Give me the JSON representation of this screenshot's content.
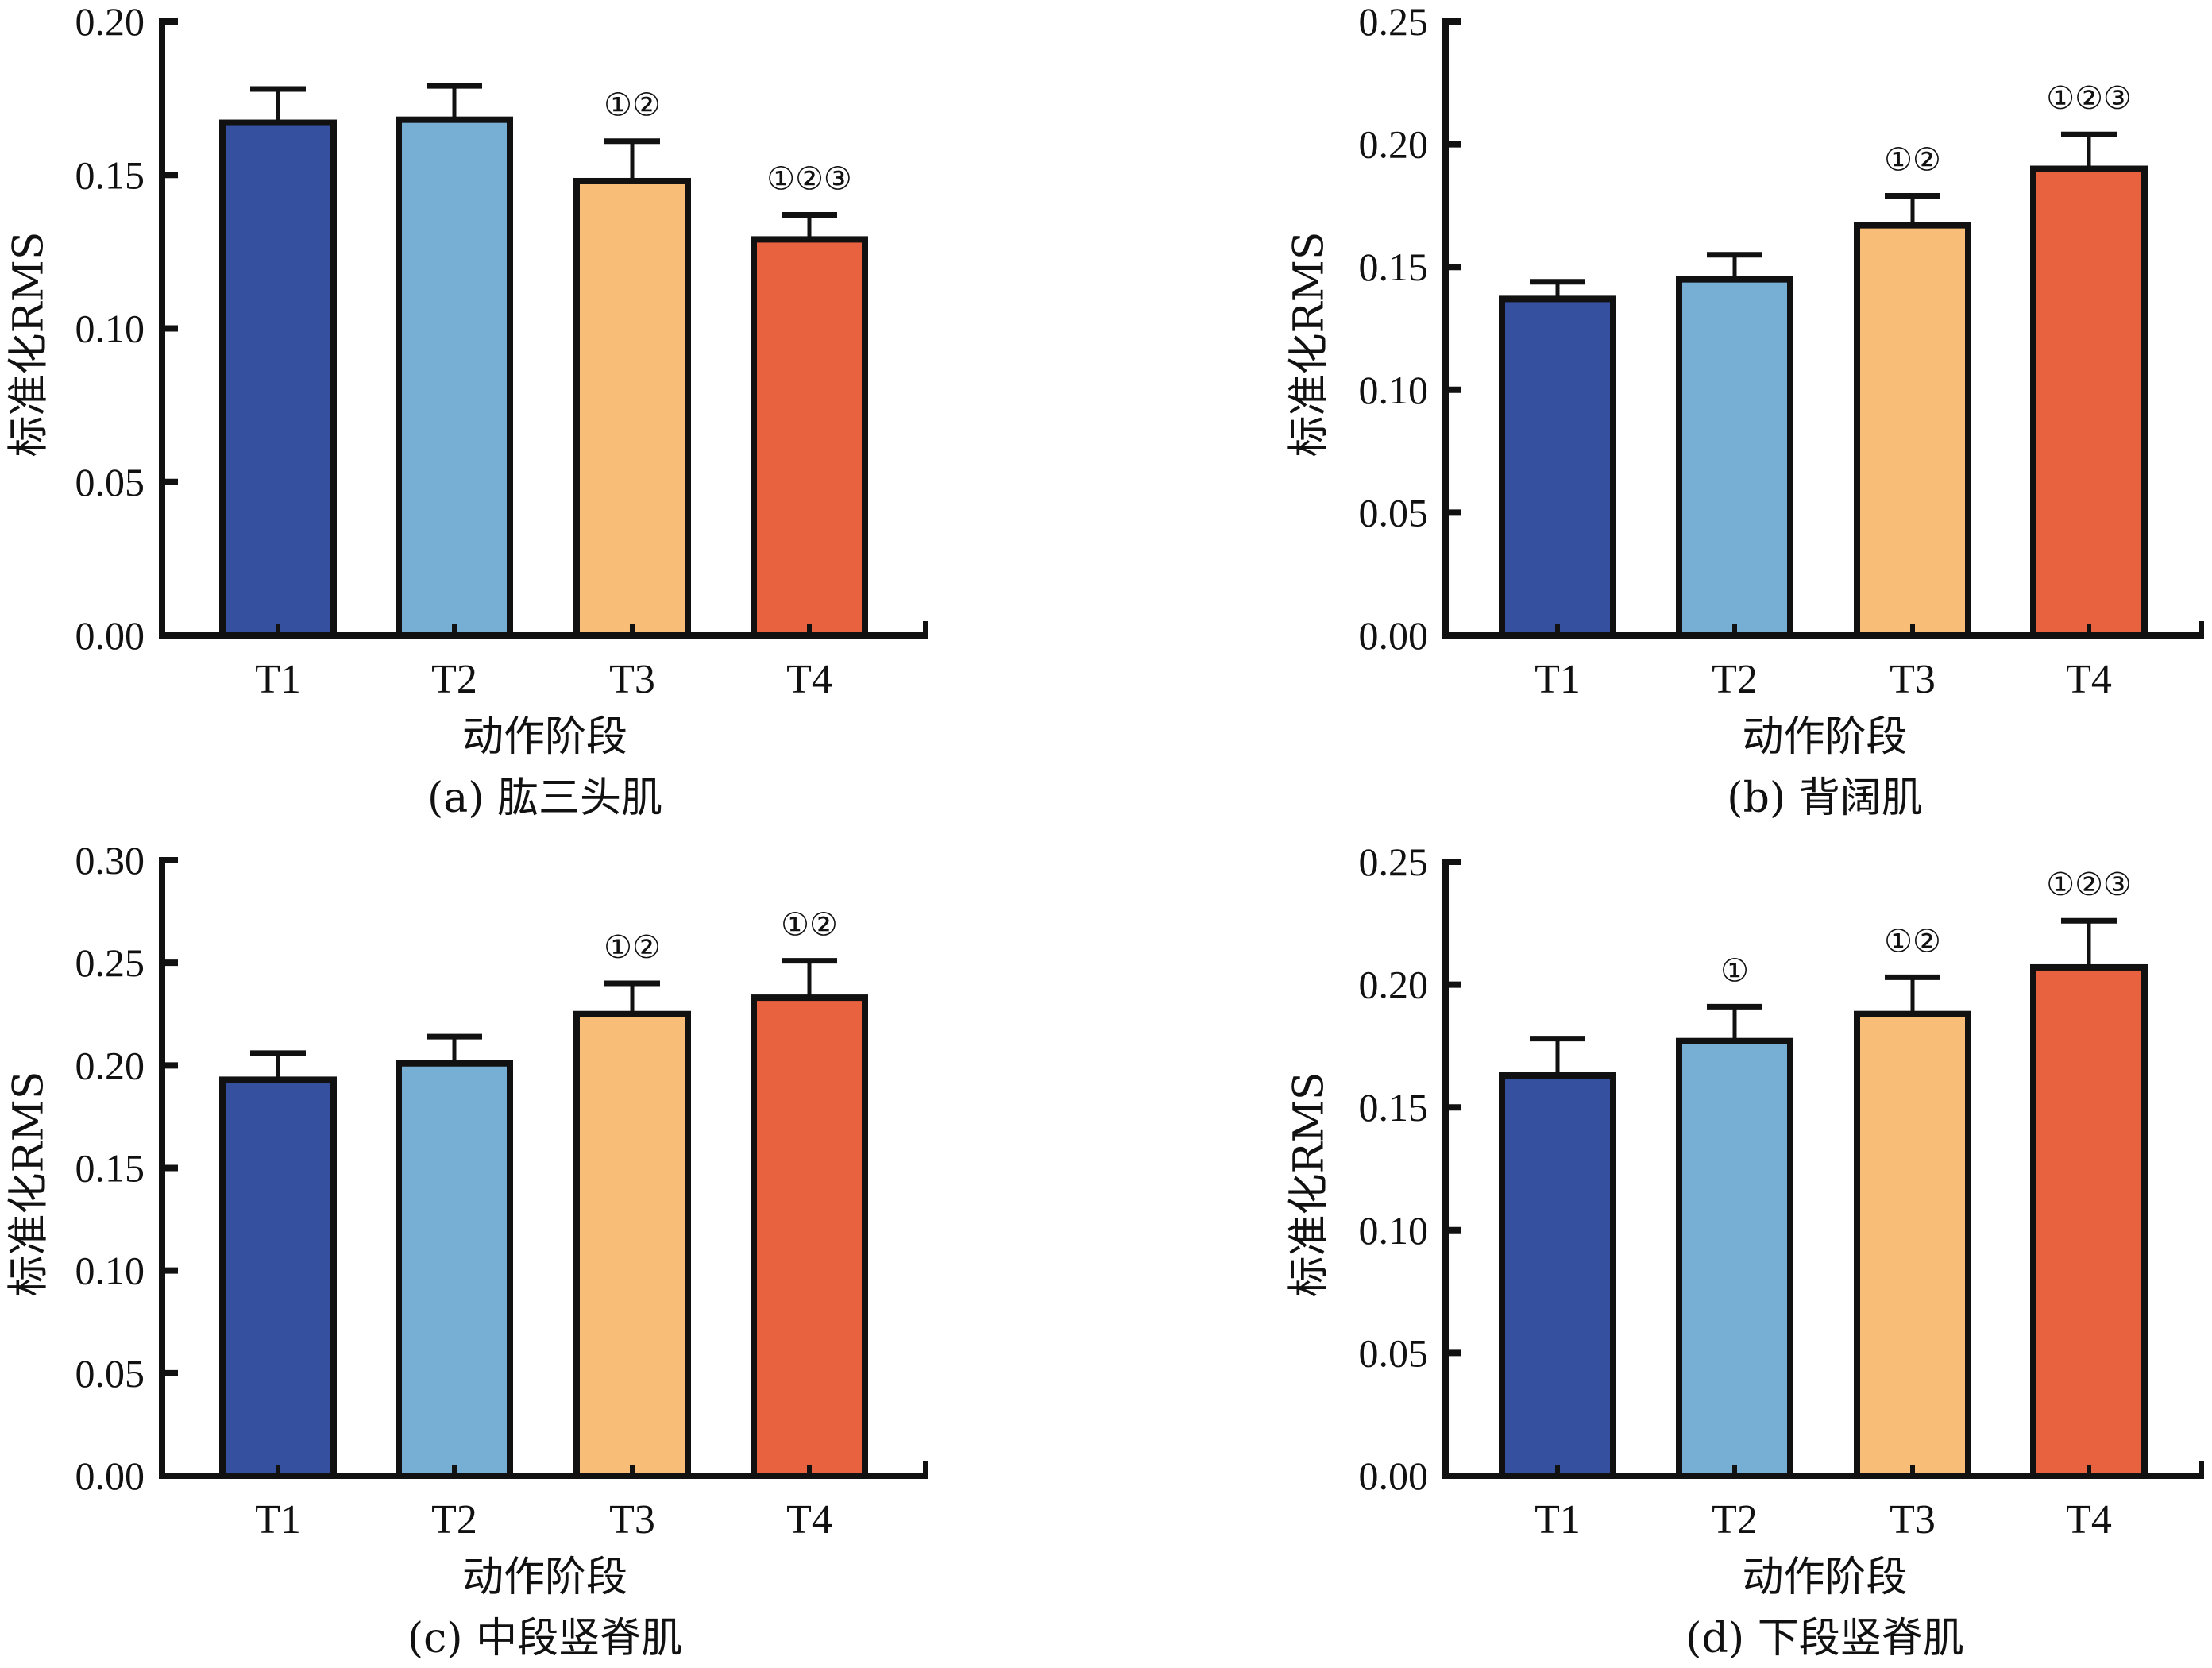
{
  "chart_data": [
    {
      "type": "bar",
      "panel": "a",
      "title": "(a) 肱三头肌",
      "xlabel": "动作阶段",
      "ylabel": "标准化RMS",
      "categories": [
        "T1",
        "T2",
        "T3",
        "T4"
      ],
      "values": [
        0.167,
        0.168,
        0.148,
        0.129
      ],
      "error_upper": [
        0.178,
        0.179,
        0.161,
        0.137
      ],
      "annotations": [
        "",
        "",
        "①②",
        "①②③"
      ],
      "ylim": [
        0,
        0.2
      ],
      "yticks": [
        "0.00",
        "0.05",
        "0.10",
        "0.15",
        "0.20"
      ],
      "ytick_values": [
        0,
        0.05,
        0.1,
        0.15,
        0.2
      ],
      "grid": false
    },
    {
      "type": "bar",
      "panel": "b",
      "title": "(b) 背阔肌",
      "xlabel": "动作阶段",
      "ylabel": "标准化RMS",
      "categories": [
        "T1",
        "T2",
        "T3",
        "T4"
      ],
      "values": [
        0.137,
        0.145,
        0.167,
        0.19
      ],
      "error_upper": [
        0.144,
        0.155,
        0.179,
        0.204
      ],
      "annotations": [
        "",
        "",
        "①②",
        "①②③"
      ],
      "ylim": [
        0,
        0.25
      ],
      "yticks": [
        "0.00",
        "0.05",
        "0.10",
        "0.15",
        "0.20",
        "0.25"
      ],
      "ytick_values": [
        0,
        0.05,
        0.1,
        0.15,
        0.2,
        0.25
      ],
      "grid": false
    },
    {
      "type": "bar",
      "panel": "c",
      "title": "(c) 中段竖脊肌",
      "xlabel": "动作阶段",
      "ylabel": "标准化RMS",
      "categories": [
        "T1",
        "T2",
        "T3",
        "T4"
      ],
      "values": [
        0.193,
        0.201,
        0.225,
        0.233
      ],
      "error_upper": [
        0.206,
        0.214,
        0.24,
        0.251
      ],
      "annotations": [
        "",
        "",
        "①②",
        "①②"
      ],
      "ylim": [
        0,
        0.3
      ],
      "yticks": [
        "0.00",
        "0.05",
        "0.10",
        "0.15",
        "0.20",
        "0.25",
        "0.30"
      ],
      "ytick_values": [
        0,
        0.05,
        0.1,
        0.15,
        0.2,
        0.25,
        0.3
      ],
      "grid": false
    },
    {
      "type": "bar",
      "panel": "d",
      "title": "(d) 下段竖脊肌",
      "xlabel": "动作阶段",
      "ylabel": "标准化RMS",
      "categories": [
        "T1",
        "T2",
        "T3",
        "T4"
      ],
      "values": [
        0.163,
        0.177,
        0.188,
        0.207
      ],
      "error_upper": [
        0.178,
        0.191,
        0.203,
        0.226
      ],
      "annotations": [
        "",
        "①",
        "①②",
        "①②③"
      ],
      "ylim": [
        0,
        0.25
      ],
      "yticks": [
        "0.00",
        "0.05",
        "0.10",
        "0.15",
        "0.20",
        "0.25"
      ],
      "ytick_values": [
        0,
        0.05,
        0.1,
        0.15,
        0.2,
        0.25
      ],
      "grid": false
    }
  ],
  "colors": {
    "bars": [
      "#3650A0",
      "#77AED3",
      "#F8BE78",
      "#E8623F"
    ],
    "outline": "#111111"
  }
}
